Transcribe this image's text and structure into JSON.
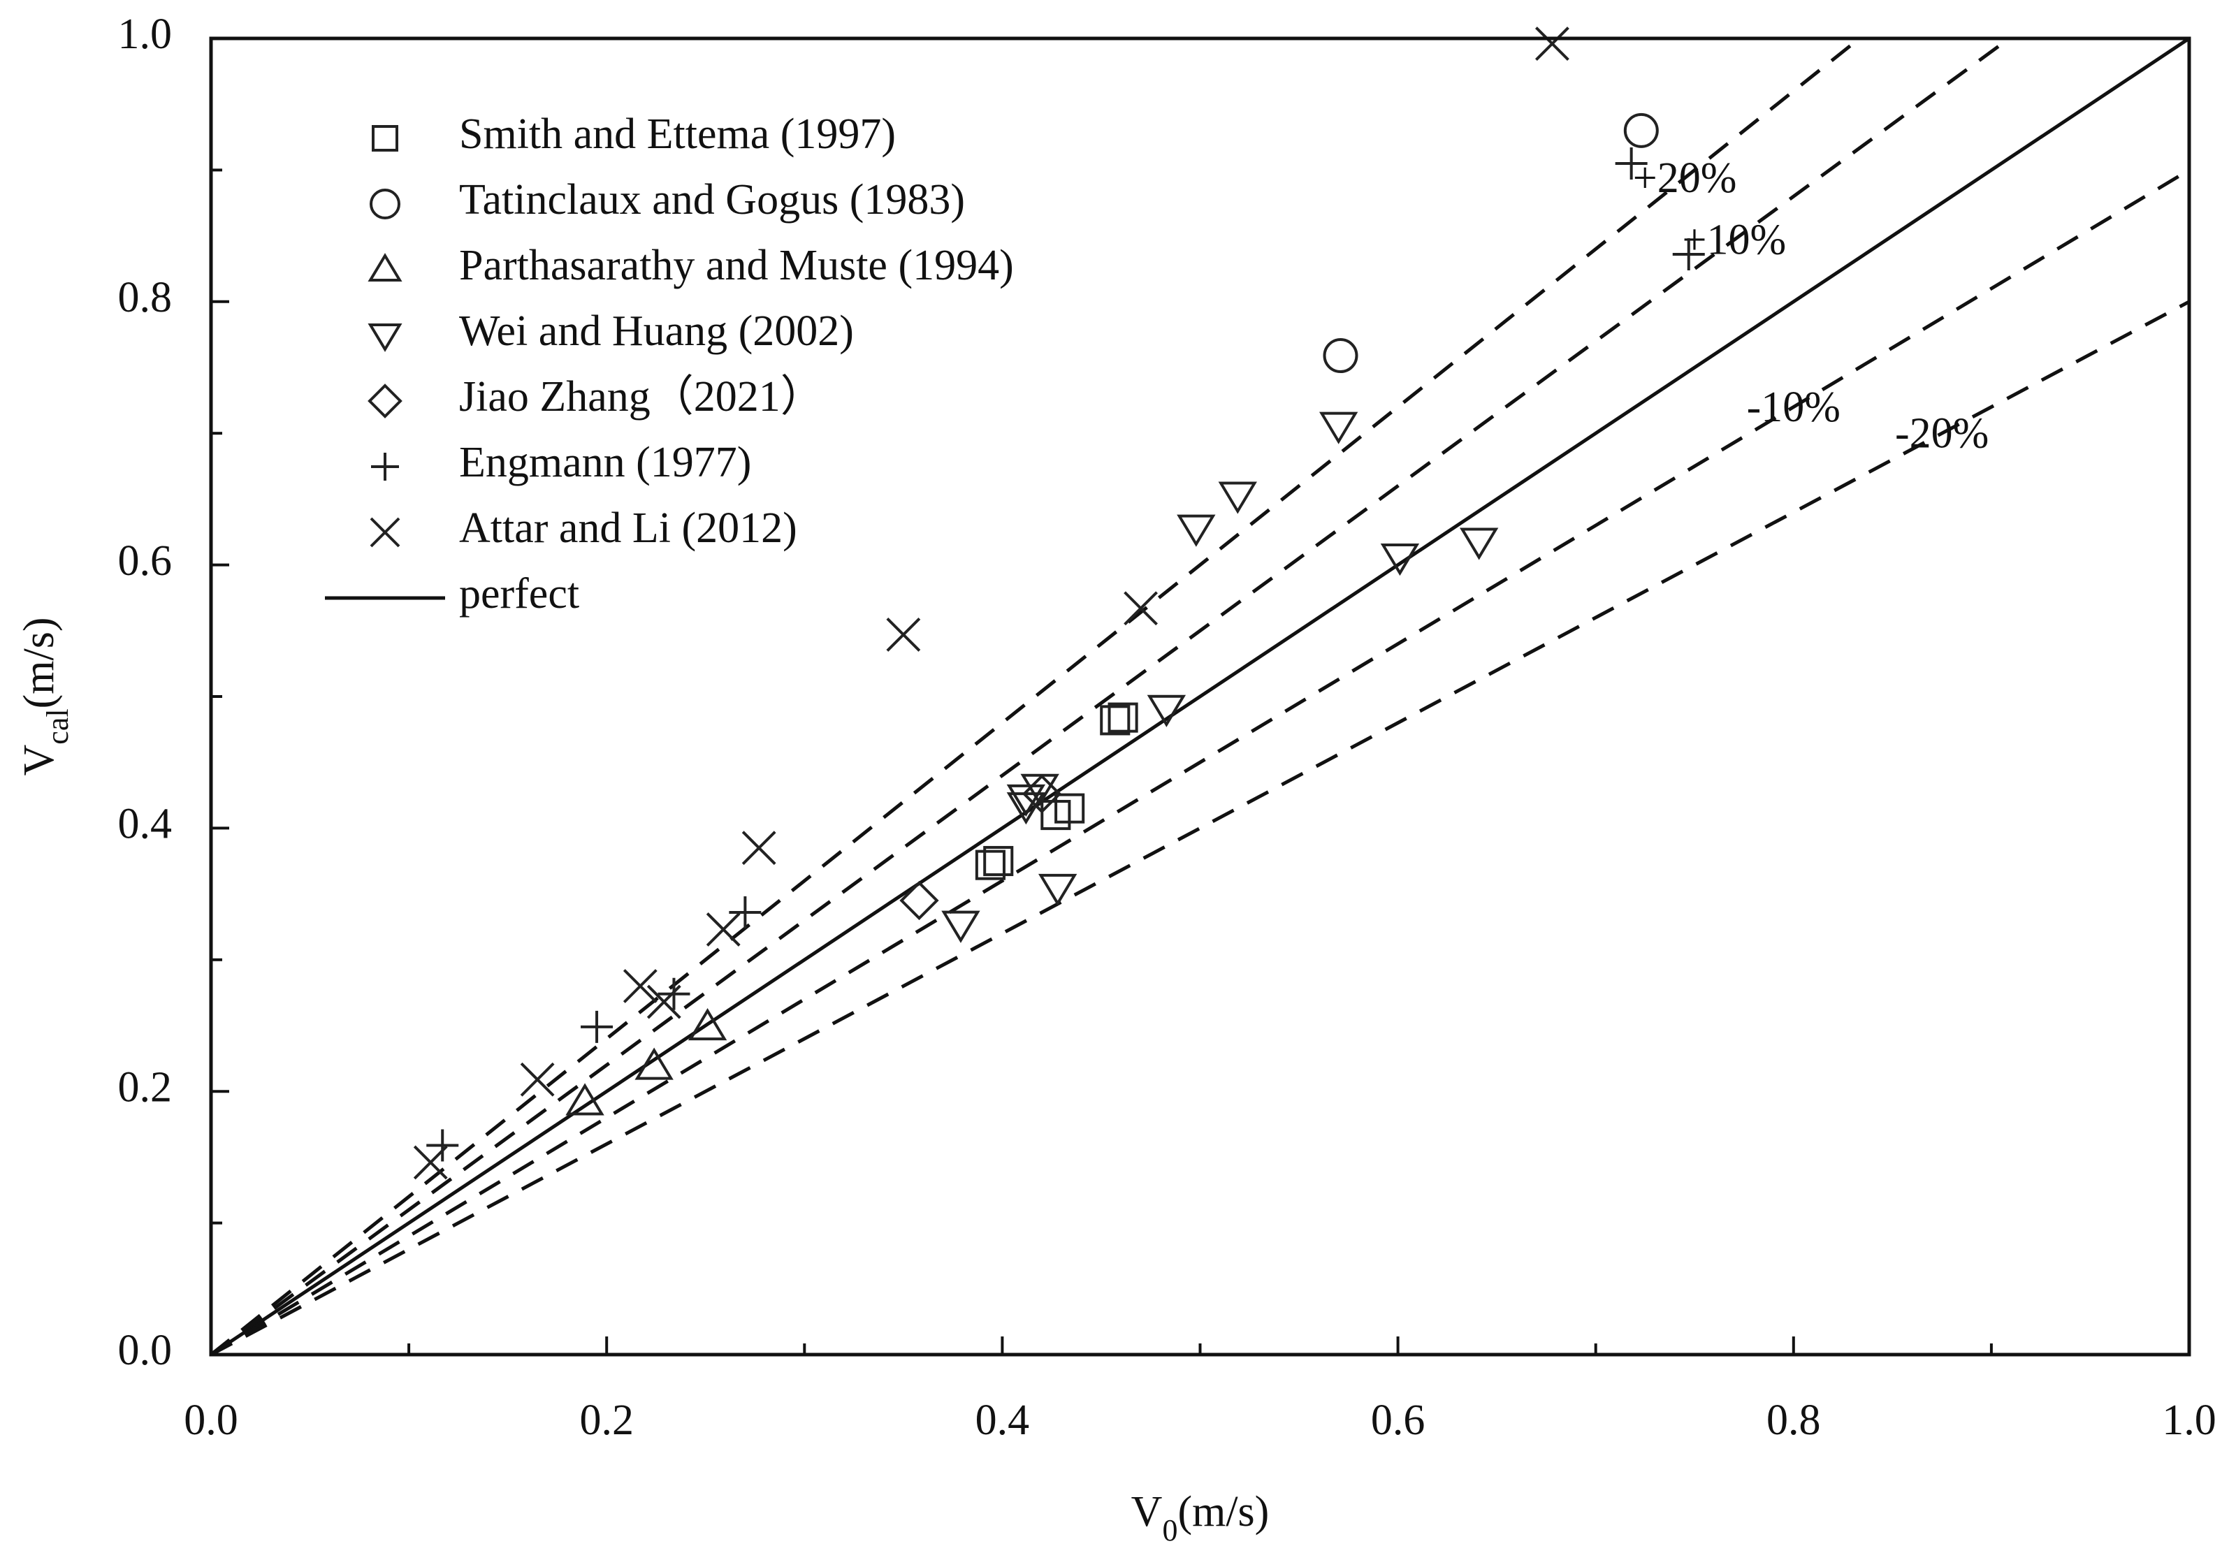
{
  "chart_data": {
    "type": "scatter",
    "xlabel": {
      "main": "V",
      "sub": "0",
      "unit": "(m/s)"
    },
    "ylabel": {
      "main": "V",
      "sub": "cal",
      "unit": "(m/s)"
    },
    "xlim": [
      0,
      1
    ],
    "ylim": [
      0,
      1
    ],
    "xticks": [
      {
        "value": 0,
        "label": "0.0"
      },
      0.2,
      0.4,
      0.6,
      0.8,
      {
        "value": 1,
        "label": "1.0"
      }
    ],
    "yticks": [
      {
        "value": 0,
        "label": "0.0"
      },
      0.2,
      0.4,
      0.6,
      0.8,
      {
        "value": 1,
        "label": "1.0"
      }
    ],
    "xminor_ticks": [
      0.1,
      0.3,
      0.5,
      0.7,
      0.9
    ],
    "yminor_ticks": [
      0.1,
      0.3,
      0.5,
      0.7,
      0.9
    ],
    "legend": "upper left",
    "series": [
      {
        "name": "Smith and Ettema (1997)",
        "marker": "square",
        "color": "#222",
        "x": [
          0.457,
          0.461,
          0.434,
          0.427,
          0.398,
          0.394
        ],
        "values": [
          0.482,
          0.484,
          0.415,
          0.41,
          0.375,
          0.372
        ]
      },
      {
        "name": "Tatinclaux and Gogus (1983)",
        "marker": "circle",
        "color": "#222",
        "x": [
          0.723,
          0.571
        ],
        "values": [
          0.93,
          0.759
        ]
      },
      {
        "name": "Parthasarathy and Muste (1994)",
        "marker": "triangle-up",
        "color": "#222",
        "x": [
          0.189,
          0.224,
          0.251
        ],
        "values": [
          0.192,
          0.219,
          0.249
        ]
      },
      {
        "name": "Wei and Huang (2002)",
        "marker": "triangle-down",
        "color": "#222",
        "x": [
          0.57,
          0.519,
          0.498,
          0.601,
          0.641,
          0.483,
          0.419,
          0.412,
          0.412,
          0.428,
          0.379
        ],
        "values": [
          0.706,
          0.653,
          0.628,
          0.606,
          0.618,
          0.491,
          0.431,
          0.423,
          0.417,
          0.355,
          0.327
        ]
      },
      {
        "name": "Jiao Zhang（2021）",
        "marker": "diamond",
        "color": "#222",
        "x": [
          0.358,
          0.42
        ],
        "values": [
          0.345,
          0.426
        ]
      },
      {
        "name": "Engmann (1977)",
        "marker": "plus",
        "color": "#222",
        "x": [
          0.718,
          0.747,
          0.27,
          0.234,
          0.195,
          0.117
        ],
        "values": [
          0.905,
          0.836,
          0.336,
          0.274,
          0.249,
          0.159
        ]
      },
      {
        "name": "Attar and Li (2012)",
        "marker": "x",
        "color": "#222",
        "x": [
          0.678,
          0.35,
          0.47,
          0.277,
          0.259,
          0.217,
          0.229,
          0.165,
          0.111
        ],
        "values": [
          0.996,
          0.547,
          0.567,
          0.385,
          0.323,
          0.28,
          0.268,
          0.209,
          0.146
        ]
      }
    ],
    "lines": [
      {
        "name": "perfect",
        "slope": 1,
        "style": "solid"
      },
      {
        "label": "+20%",
        "slope": 1.2,
        "style": "dashed"
      },
      {
        "label": "+10%",
        "slope": 1.1,
        "style": "dashed"
      },
      {
        "label": "-10%",
        "slope": 0.9,
        "style": "dashed"
      },
      {
        "label": "-20%",
        "slope": 0.8,
        "style": "dashed"
      }
    ]
  }
}
